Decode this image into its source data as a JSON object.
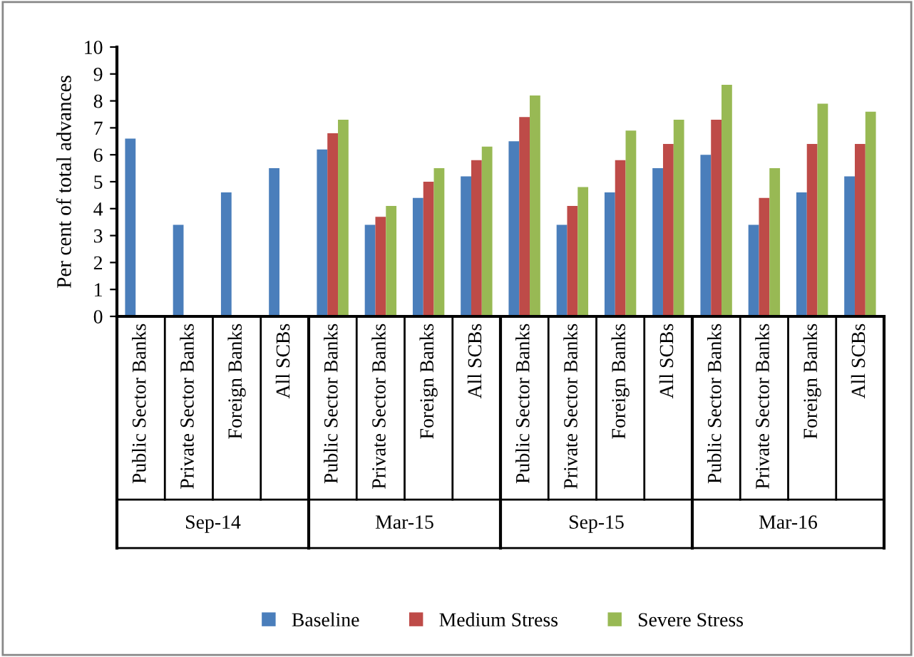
{
  "chart_data": {
    "type": "bar",
    "ylabel": "Per cent of total advances",
    "categories": [
      "Public Sector Banks",
      "Private Sector Banks",
      "Foreign Banks",
      "All SCBs",
      "Public Sector Banks",
      "Private Sector Banks",
      "Foreign Banks",
      "All SCBs",
      "Public Sector Banks",
      "Private Sector Banks",
      "Foreign Banks",
      "All SCBs",
      "Public Sector Banks",
      "Private Sector Banks",
      "Foreign Banks",
      "All SCBs"
    ],
    "annotations": [
      "Sep-14",
      "Mar-15",
      "Sep-15",
      "Mar-16"
    ],
    "series": [
      {
        "name": "Baseline",
        "color": "#4a7ebb",
        "values": [
          6.6,
          3.4,
          4.6,
          5.5,
          6.2,
          3.4,
          4.4,
          5.2,
          6.5,
          3.4,
          4.6,
          5.5,
          6.0,
          3.4,
          4.6,
          5.2
        ]
      },
      {
        "name": "Medium Stress",
        "color": "#be4b48",
        "values": [
          null,
          null,
          null,
          null,
          6.8,
          3.7,
          5.0,
          5.8,
          7.4,
          4.1,
          5.8,
          6.4,
          7.3,
          4.4,
          6.4,
          6.4
        ]
      },
      {
        "name": "Severe Stress",
        "color": "#98b954",
        "values": [
          null,
          null,
          null,
          null,
          7.3,
          4.1,
          5.5,
          6.3,
          8.2,
          4.8,
          6.9,
          7.3,
          8.6,
          5.5,
          7.9,
          7.6
        ]
      }
    ],
    "ylim": [
      0,
      10
    ],
    "yticks": [
      0,
      1,
      2,
      3,
      4,
      5,
      6,
      7,
      8,
      9,
      10
    ],
    "grid": false,
    "legend": "bottom"
  }
}
